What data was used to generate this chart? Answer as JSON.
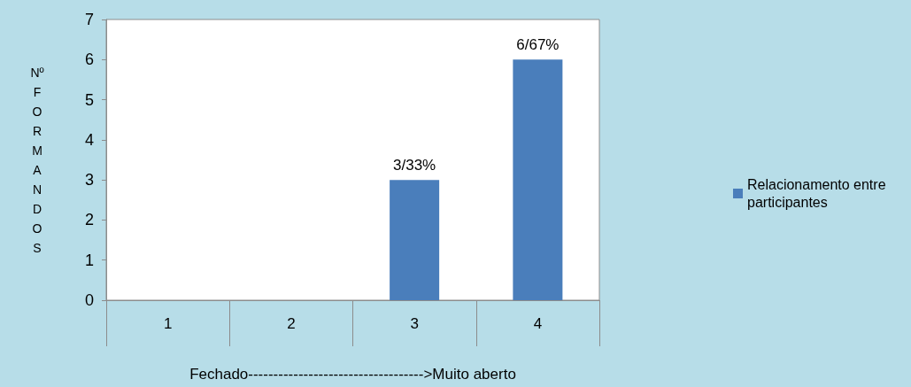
{
  "chart_data": {
    "type": "bar",
    "xlabel": "Fechado----------------------------------->Muito aberto",
    "ylabel": "Nº FORMANDOS",
    "categories": [
      "1",
      "2",
      "3",
      "4"
    ],
    "series": [
      {
        "name": "Relacionamento entre participantes",
        "color": "#4a7ebb",
        "values": [
          0,
          0,
          3,
          6
        ],
        "value_labels": [
          null,
          null,
          "3/33%",
          "6/67%"
        ]
      }
    ],
    "ylim": [
      0,
      7
    ],
    "yticks": [
      0,
      1,
      2,
      3,
      4,
      5,
      6,
      7
    ],
    "grid": false,
    "legend": "right"
  }
}
